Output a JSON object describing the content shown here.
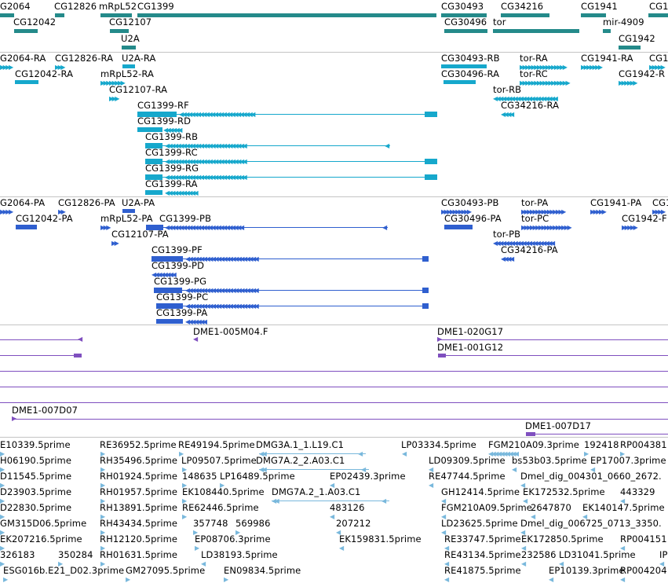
{
  "colors": {
    "gene": "#248a8a",
    "mrna_rna": "#16a8cc",
    "protein": "#2f5fcf",
    "clone": "#7f4fbf",
    "est": "#79b8dc",
    "divider": "#c4c4c4"
  },
  "tracks": {
    "gene": {
      "labels": [
        "G2064",
        "CG12826",
        "mRpL52",
        "CG1399",
        "CG30493",
        "CG34216",
        "CG1941",
        "CG1",
        "CG12042",
        "CG12107",
        "CG30496",
        "tor",
        "mir-4909",
        "U2A",
        "CG1942"
      ]
    },
    "transcript": {
      "labels": [
        "G2064-RA",
        "CG12826-RA",
        "U2A-RA",
        "CG30493-RB",
        "tor-RA",
        "CG1941-RA",
        "CG1",
        "CG12042-RA",
        "mRpL52-RA",
        "CG30496-RA",
        "tor-RC",
        "CG1942-R",
        "CG12107-RA",
        "tor-RB",
        "CG34216-RA",
        "CG1399-RF",
        "CG1399-RD",
        "CG1399-RB",
        "CG1399-RC",
        "CG1399-RG",
        "CG1399-RA"
      ]
    },
    "protein": {
      "labels": [
        "G2064-PA",
        "CG12826-PA",
        "U2A-PA",
        "CG30493-PB",
        "tor-PA",
        "CG1941-PA",
        "CG1",
        "CG12042-PA",
        "mRpL52-PA",
        "CG1399-PB",
        "CG30496-PA",
        "tor-PC",
        "CG1942-F",
        "CG12107-PA",
        "tor-PB",
        "CG34216-PA",
        "CG1399-PF",
        "CG1399-PD",
        "CG1399-PG",
        "CG1399-PC",
        "CG1399-PA"
      ]
    },
    "clone": {
      "labels": [
        "DME1-005M04.F",
        "DME1-020G17",
        "DME1-001G12",
        "DME1-007D07",
        "DME1-007D17"
      ]
    },
    "est": {
      "labels": [
        "E10339.5prime",
        "RE36952.5prime",
        "RE49194.5prime",
        "DMG3A.1_1.L19.C1",
        "LP03334.5prime",
        "FGM210A09.3prime",
        "192418",
        "RP004381",
        "H06190.5prime",
        "RH35496.5prime",
        "LP09507.5prime",
        "LD09309.5prime",
        "bs53b03.5prime",
        "EP17007.3prime",
        "D11545.5prime",
        "RH01924.5prime",
        "148635",
        "LP16489.5prime",
        "EP02439.3prime",
        "RE47744.5prime",
        "Dmel_dig_004301_0660_2672.",
        "D23903.5prime",
        "RH01957.5prime",
        "EK108440.5prime",
        "DMG7A.2_1.A03.C1",
        "GH12414.5prime",
        "EK172532.5prime",
        "443329",
        "D22830.5prime",
        "RH13891.5prime",
        "RE62446.5prime",
        "483126",
        "FGM210A09.5prime",
        "2647870",
        "EK140147.5prime",
        "GM315D06.5prime",
        "RH43434.5prime",
        "357748",
        "569986",
        "207212",
        "LD23625.5prime",
        "Dmel_dig_006725_0713_3350.",
        "EK207216.5prime",
        "RH12120.5prime",
        "EP08706.3prime",
        "EK159831.5prime",
        "RE33747.5prime",
        "EK172850.5prime",
        "RP004151",
        "326183",
        "350284",
        "RH01631.5prime",
        "LD38193.5prime",
        "RE43134.5prime",
        "232586",
        "LD31041.5prime",
        "IP",
        "ESG016b.E21_D02.3prime",
        "GM27095.5prime",
        "EN09834.5prime",
        "RE41875.5prime",
        "EP10139.3prime",
        "RP004204",
        "DMG7A.2_2.A03.C1"
      ]
    }
  }
}
